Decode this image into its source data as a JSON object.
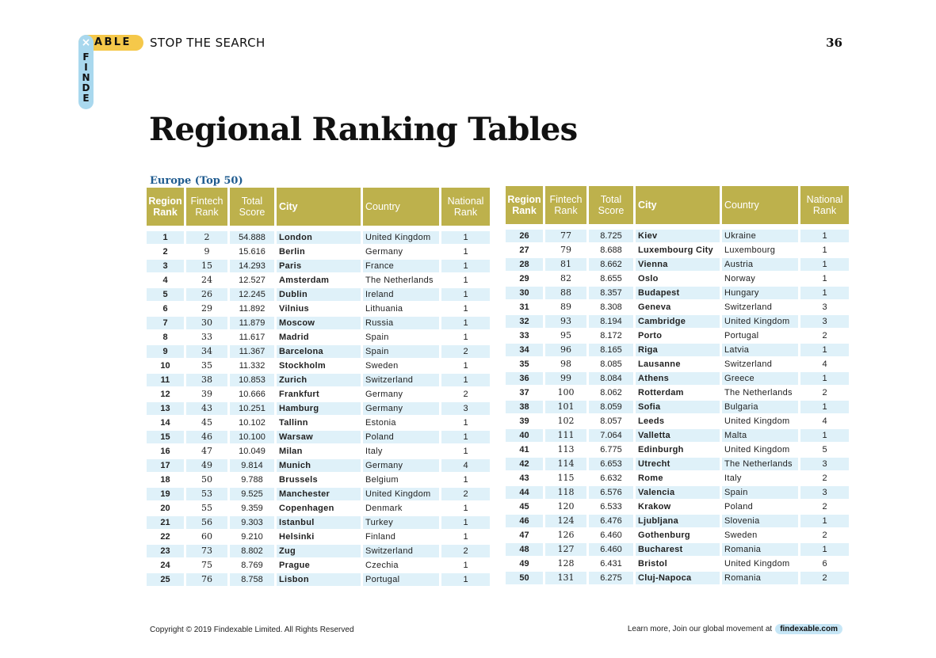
{
  "header": {
    "logo_mark": "×",
    "logo_able": "ABLE",
    "logo_findex": [
      "F",
      "I",
      "N",
      "D",
      "E"
    ],
    "tagline": "STOP THE SEARCH",
    "page_number": "36"
  },
  "title": "Regional Ranking Tables",
  "section_label": "Europe (Top 50)",
  "columns": {
    "region_rank": "Region Rank",
    "fintech_rank": "Fintech Rank",
    "total_score": "Total Score",
    "city": "City",
    "country": "Country",
    "national_rank": "National Rank"
  },
  "rows": [
    {
      "region": "1",
      "fintech": "2",
      "score": "54.888",
      "city": "London",
      "country": "United Kingdom",
      "national": "1"
    },
    {
      "region": "2",
      "fintech": "9",
      "score": "15.616",
      "city": "Berlin",
      "country": "Germany",
      "national": "1"
    },
    {
      "region": "3",
      "fintech": "15",
      "score": "14.293",
      "city": "Paris",
      "country": "France",
      "national": "1"
    },
    {
      "region": "4",
      "fintech": "24",
      "score": "12.527",
      "city": "Amsterdam",
      "country": "The Netherlands",
      "national": "1"
    },
    {
      "region": "5",
      "fintech": "26",
      "score": "12.245",
      "city": "Dublin",
      "country": "Ireland",
      "national": "1"
    },
    {
      "region": "6",
      "fintech": "29",
      "score": "11.892",
      "city": "Vilnius",
      "country": "Lithuania",
      "national": "1"
    },
    {
      "region": "7",
      "fintech": "30",
      "score": "11.879",
      "city": "Moscow",
      "country": "Russia",
      "national": "1"
    },
    {
      "region": "8",
      "fintech": "33",
      "score": "11.617",
      "city": "Madrid",
      "country": "Spain",
      "national": "1"
    },
    {
      "region": "9",
      "fintech": "34",
      "score": "11.367",
      "city": "Barcelona",
      "country": "Spain",
      "national": "2"
    },
    {
      "region": "10",
      "fintech": "35",
      "score": "11.332",
      "city": "Stockholm",
      "country": "Sweden",
      "national": "1"
    },
    {
      "region": "11",
      "fintech": "38",
      "score": "10.853",
      "city": "Zurich",
      "country": "Switzerland",
      "national": "1"
    },
    {
      "region": "12",
      "fintech": "39",
      "score": "10.666",
      "city": "Frankfurt",
      "country": "Germany",
      "national": "2"
    },
    {
      "region": "13",
      "fintech": "43",
      "score": "10.251",
      "city": "Hamburg",
      "country": "Germany",
      "national": "3"
    },
    {
      "region": "14",
      "fintech": "45",
      "score": "10.102",
      "city": "Tallinn",
      "country": "Estonia",
      "national": "1"
    },
    {
      "region": "15",
      "fintech": "46",
      "score": "10.100",
      "city": "Warsaw",
      "country": "Poland",
      "national": "1"
    },
    {
      "region": "16",
      "fintech": "47",
      "score": "10.049",
      "city": "Milan",
      "country": "Italy",
      "national": "1"
    },
    {
      "region": "17",
      "fintech": "49",
      "score": "9.814",
      "city": "Munich",
      "country": "Germany",
      "national": "4"
    },
    {
      "region": "18",
      "fintech": "50",
      "score": "9.788",
      "city": "Brussels",
      "country": "Belgium",
      "national": "1"
    },
    {
      "region": "19",
      "fintech": "53",
      "score": "9.525",
      "city": "Manchester",
      "country": "United Kingdom",
      "national": "2"
    },
    {
      "region": "20",
      "fintech": "55",
      "score": "9.359",
      "city": "Copenhagen",
      "country": "Denmark",
      "national": "1"
    },
    {
      "region": "21",
      "fintech": "56",
      "score": "9.303",
      "city": "Istanbul",
      "country": "Turkey",
      "national": "1"
    },
    {
      "region": "22",
      "fintech": "60",
      "score": "9.210",
      "city": "Helsinki",
      "country": "Finland",
      "national": "1"
    },
    {
      "region": "23",
      "fintech": "73",
      "score": "8.802",
      "city": "Zug",
      "country": "Switzerland",
      "national": "2"
    },
    {
      "region": "24",
      "fintech": "75",
      "score": "8.769",
      "city": "Prague",
      "country": "Czechia",
      "national": "1"
    },
    {
      "region": "25",
      "fintech": "76",
      "score": "8.758",
      "city": "Lisbon",
      "country": "Portugal",
      "national": "1"
    },
    {
      "region": "26",
      "fintech": "77",
      "score": "8.725",
      "city": "Kiev",
      "country": "Ukraine",
      "national": "1"
    },
    {
      "region": "27",
      "fintech": "79",
      "score": "8.688",
      "city": "Luxembourg City",
      "country": "Luxembourg",
      "national": "1"
    },
    {
      "region": "28",
      "fintech": "81",
      "score": "8.662",
      "city": "Vienna",
      "country": "Austria",
      "national": "1"
    },
    {
      "region": "29",
      "fintech": "82",
      "score": "8.655",
      "city": "Oslo",
      "country": "Norway",
      "national": "1"
    },
    {
      "region": "30",
      "fintech": "88",
      "score": "8.357",
      "city": "Budapest",
      "country": "Hungary",
      "national": "1"
    },
    {
      "region": "31",
      "fintech": "89",
      "score": "8.308",
      "city": "Geneva",
      "country": "Switzerland",
      "national": "3"
    },
    {
      "region": "32",
      "fintech": "93",
      "score": "8.194",
      "city": "Cambridge",
      "country": "United Kingdom",
      "national": "3"
    },
    {
      "region": "33",
      "fintech": "95",
      "score": "8.172",
      "city": "Porto",
      "country": "Portugal",
      "national": "2"
    },
    {
      "region": "34",
      "fintech": "96",
      "score": "8.165",
      "city": "Riga",
      "country": "Latvia",
      "national": "1"
    },
    {
      "region": "35",
      "fintech": "98",
      "score": "8.085",
      "city": "Lausanne",
      "country": "Switzerland",
      "national": "4"
    },
    {
      "region": "36",
      "fintech": "99",
      "score": "8.084",
      "city": "Athens",
      "country": "Greece",
      "national": "1"
    },
    {
      "region": "37",
      "fintech": "100",
      "score": "8.062",
      "city": "Rotterdam",
      "country": "The Netherlands",
      "national": "2"
    },
    {
      "region": "38",
      "fintech": "101",
      "score": "8.059",
      "city": "Sofia",
      "country": "Bulgaria",
      "national": "1"
    },
    {
      "region": "39",
      "fintech": "102",
      "score": "8.057",
      "city": "Leeds",
      "country": "United Kingdom",
      "national": "4"
    },
    {
      "region": "40",
      "fintech": "111",
      "score": "7.064",
      "city": "Valletta",
      "country": "Malta",
      "national": "1"
    },
    {
      "region": "41",
      "fintech": "113",
      "score": "6.775",
      "city": "Edinburgh",
      "country": "United Kingdom",
      "national": "5"
    },
    {
      "region": "42",
      "fintech": "114",
      "score": "6.653",
      "city": "Utrecht",
      "country": "The Netherlands",
      "national": "3"
    },
    {
      "region": "43",
      "fintech": "115",
      "score": "6.632",
      "city": "Rome",
      "country": "Italy",
      "national": "2"
    },
    {
      "region": "44",
      "fintech": "118",
      "score": "6.576",
      "city": "Valencia",
      "country": "Spain",
      "national": "3"
    },
    {
      "region": "45",
      "fintech": "120",
      "score": "6.533",
      "city": "Krakow",
      "country": "Poland",
      "national": "2"
    },
    {
      "region": "46",
      "fintech": "124",
      "score": "6.476",
      "city": "Ljubljana",
      "country": "Slovenia",
      "national": "1"
    },
    {
      "region": "47",
      "fintech": "126",
      "score": "6.460",
      "city": "Gothenburg",
      "country": "Sweden",
      "national": "2"
    },
    {
      "region": "48",
      "fintech": "127",
      "score": "6.460",
      "city": "Bucharest",
      "country": "Romania",
      "national": "1"
    },
    {
      "region": "49",
      "fintech": "128",
      "score": "6.431",
      "city": "Bristol",
      "country": "United Kingdom",
      "national": "6"
    },
    {
      "region": "50",
      "fintech": "131",
      "score": "6.275",
      "city": "Cluj-Napoca",
      "country": "Romania",
      "national": "2"
    }
  ],
  "footer": {
    "copyright": "Copyright © 2019 Findexable Limited. All Rights Reserved",
    "cta": "Learn more, Join our global movement at",
    "link": "findexable.com"
  }
}
